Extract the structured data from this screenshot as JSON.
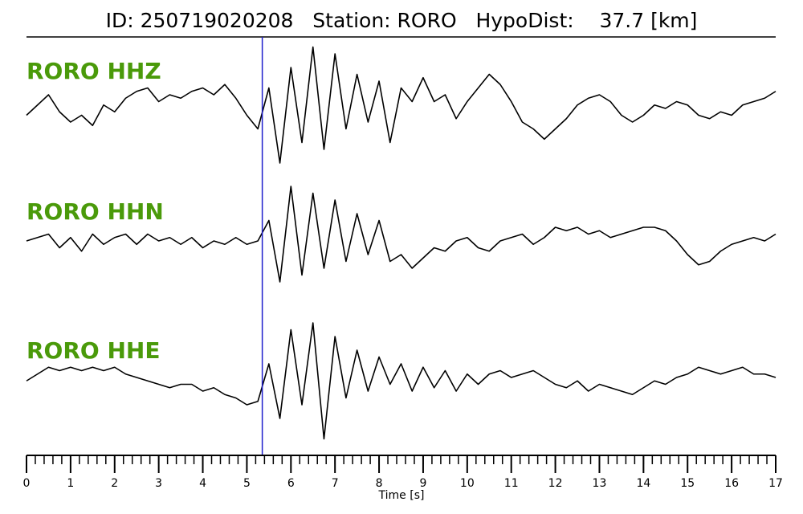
{
  "chart_data": {
    "type": "waveform",
    "title": "ID: 250719020208   Station: RORO   HypoDist:    37.7 [km]",
    "x_label": "Time [s]",
    "xlim": [
      0,
      17
    ],
    "xticks": [
      0,
      1,
      2,
      3,
      4,
      5,
      6,
      7,
      8,
      9,
      10,
      11,
      12,
      13,
      14,
      15,
      16,
      17
    ],
    "minor_tick_interval": 0.2,
    "ylim": [
      -1,
      1
    ],
    "pick_time": 5.35,
    "pick_color": "#1f1fcc",
    "label_color": "#4a9a0a",
    "x": [
      0,
      0.25,
      0.5,
      0.75,
      1,
      1.25,
      1.5,
      1.75,
      2,
      2.25,
      2.5,
      2.75,
      3,
      3.25,
      3.5,
      3.75,
      4,
      4.25,
      4.5,
      4.75,
      5,
      5.25,
      5.5,
      5.75,
      6,
      6.25,
      6.5,
      6.75,
      7,
      7.25,
      7.5,
      7.75,
      8,
      8.25,
      8.5,
      8.75,
      9,
      9.25,
      9.5,
      9.75,
      10,
      10.25,
      10.5,
      10.75,
      11,
      11.25,
      11.5,
      11.75,
      12,
      12.25,
      12.5,
      12.75,
      13,
      13.25,
      13.5,
      13.75,
      14,
      14.25,
      14.5,
      14.75,
      15,
      15.25,
      15.5,
      15.75,
      16,
      16.25,
      16.5,
      16.75,
      17
    ],
    "series": [
      {
        "name": "RORO HHZ",
        "color": "#000000",
        "values": [
          -0.1,
          0.05,
          0.2,
          -0.05,
          -0.2,
          -0.1,
          -0.25,
          0.05,
          -0.05,
          0.15,
          0.25,
          0.3,
          0.1,
          0.2,
          0.15,
          0.25,
          0.3,
          0.2,
          0.35,
          0.15,
          -0.1,
          -0.3,
          0.3,
          -0.8,
          0.6,
          -0.5,
          0.9,
          -0.6,
          0.8,
          -0.3,
          0.5,
          -0.2,
          0.4,
          -0.5,
          0.3,
          0.1,
          0.45,
          0.1,
          0.2,
          -0.15,
          0.1,
          0.3,
          0.5,
          0.35,
          0.1,
          -0.2,
          -0.3,
          -0.45,
          -0.3,
          -0.15,
          0.05,
          0.15,
          0.2,
          0.1,
          -0.1,
          -0.2,
          -0.1,
          0.05,
          0.0,
          0.1,
          0.05,
          -0.1,
          -0.15,
          -0.05,
          -0.1,
          0.05,
          0.1,
          0.15,
          0.25
        ]
      },
      {
        "name": "RORO HHN",
        "color": "#000000",
        "values": [
          0,
          0.05,
          0.1,
          -0.1,
          0.05,
          -0.15,
          0.1,
          -0.05,
          0.05,
          0.1,
          -0.05,
          0.1,
          0.0,
          0.05,
          -0.05,
          0.05,
          -0.1,
          0.0,
          -0.05,
          0.05,
          -0.05,
          0.0,
          0.3,
          -0.6,
          0.8,
          -0.5,
          0.7,
          -0.4,
          0.6,
          -0.3,
          0.4,
          -0.2,
          0.3,
          -0.3,
          -0.2,
          -0.4,
          -0.25,
          -0.1,
          -0.15,
          0.0,
          0.05,
          -0.1,
          -0.15,
          0.0,
          0.05,
          0.1,
          -0.05,
          0.05,
          0.2,
          0.15,
          0.2,
          0.1,
          0.15,
          0.05,
          0.1,
          0.15,
          0.2,
          0.2,
          0.15,
          0.0,
          -0.2,
          -0.35,
          -0.3,
          -0.15,
          -0.05,
          0.0,
          0.05,
          0.0,
          0.1
        ]
      },
      {
        "name": "RORO HHE",
        "color": "#000000",
        "values": [
          -0.05,
          0.05,
          0.15,
          0.1,
          0.15,
          0.1,
          0.15,
          0.1,
          0.15,
          0.05,
          0.0,
          -0.05,
          -0.1,
          -0.15,
          -0.1,
          -0.1,
          -0.2,
          -0.15,
          -0.25,
          -0.3,
          -0.4,
          -0.35,
          0.2,
          -0.6,
          0.7,
          -0.4,
          0.8,
          -0.9,
          0.6,
          -0.3,
          0.4,
          -0.2,
          0.3,
          -0.1,
          0.2,
          -0.2,
          0.15,
          -0.15,
          0.1,
          -0.2,
          0.05,
          -0.1,
          0.05,
          0.1,
          0.0,
          0.05,
          0.1,
          0.0,
          -0.1,
          -0.15,
          -0.05,
          -0.2,
          -0.1,
          -0.15,
          -0.2,
          -0.25,
          -0.15,
          -0.05,
          -0.1,
          0.0,
          0.05,
          0.15,
          0.1,
          0.05,
          0.1,
          0.15,
          0.05,
          0.05,
          0.0
        ]
      }
    ]
  }
}
